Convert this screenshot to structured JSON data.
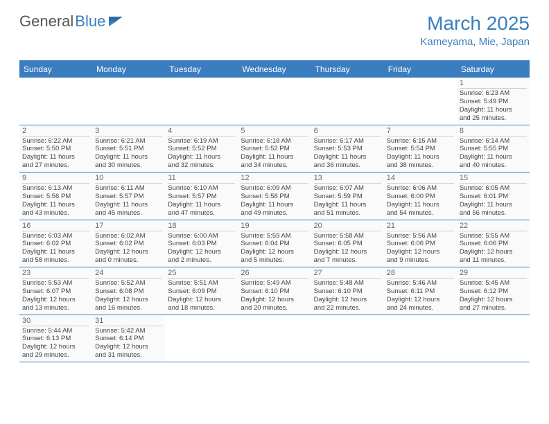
{
  "logo": {
    "general": "General",
    "blue": "Blue"
  },
  "title": "March 2025",
  "location": "Kameyama, Mie, Japan",
  "colors": {
    "accent": "#3b7ec0",
    "cell_bg": "#fafafa",
    "text": "#444444",
    "day_num": "#666666"
  },
  "day_headers": [
    "Sunday",
    "Monday",
    "Tuesday",
    "Wednesday",
    "Thursday",
    "Friday",
    "Saturday"
  ],
  "weeks": [
    [
      null,
      null,
      null,
      null,
      null,
      null,
      {
        "n": "1",
        "sr": "6:23 AM",
        "ss": "5:49 PM",
        "dh": "11",
        "dm": "25"
      }
    ],
    [
      {
        "n": "2",
        "sr": "6:22 AM",
        "ss": "5:50 PM",
        "dh": "11",
        "dm": "27"
      },
      {
        "n": "3",
        "sr": "6:21 AM",
        "ss": "5:51 PM",
        "dh": "11",
        "dm": "30"
      },
      {
        "n": "4",
        "sr": "6:19 AM",
        "ss": "5:52 PM",
        "dh": "11",
        "dm": "32"
      },
      {
        "n": "5",
        "sr": "6:18 AM",
        "ss": "5:52 PM",
        "dh": "11",
        "dm": "34"
      },
      {
        "n": "6",
        "sr": "6:17 AM",
        "ss": "5:53 PM",
        "dh": "11",
        "dm": "36"
      },
      {
        "n": "7",
        "sr": "6:15 AM",
        "ss": "5:54 PM",
        "dh": "11",
        "dm": "38"
      },
      {
        "n": "8",
        "sr": "6:14 AM",
        "ss": "5:55 PM",
        "dh": "11",
        "dm": "40"
      }
    ],
    [
      {
        "n": "9",
        "sr": "6:13 AM",
        "ss": "5:56 PM",
        "dh": "11",
        "dm": "43"
      },
      {
        "n": "10",
        "sr": "6:11 AM",
        "ss": "5:57 PM",
        "dh": "11",
        "dm": "45"
      },
      {
        "n": "11",
        "sr": "6:10 AM",
        "ss": "5:57 PM",
        "dh": "11",
        "dm": "47"
      },
      {
        "n": "12",
        "sr": "6:09 AM",
        "ss": "5:58 PM",
        "dh": "11",
        "dm": "49"
      },
      {
        "n": "13",
        "sr": "6:07 AM",
        "ss": "5:59 PM",
        "dh": "11",
        "dm": "51"
      },
      {
        "n": "14",
        "sr": "6:06 AM",
        "ss": "6:00 PM",
        "dh": "11",
        "dm": "54"
      },
      {
        "n": "15",
        "sr": "6:05 AM",
        "ss": "6:01 PM",
        "dh": "11",
        "dm": "56"
      }
    ],
    [
      {
        "n": "16",
        "sr": "6:03 AM",
        "ss": "6:02 PM",
        "dh": "11",
        "dm": "58"
      },
      {
        "n": "17",
        "sr": "6:02 AM",
        "ss": "6:02 PM",
        "dh": "12",
        "dm": "0"
      },
      {
        "n": "18",
        "sr": "6:00 AM",
        "ss": "6:03 PM",
        "dh": "12",
        "dm": "2"
      },
      {
        "n": "19",
        "sr": "5:59 AM",
        "ss": "6:04 PM",
        "dh": "12",
        "dm": "5"
      },
      {
        "n": "20",
        "sr": "5:58 AM",
        "ss": "6:05 PM",
        "dh": "12",
        "dm": "7"
      },
      {
        "n": "21",
        "sr": "5:56 AM",
        "ss": "6:06 PM",
        "dh": "12",
        "dm": "9"
      },
      {
        "n": "22",
        "sr": "5:55 AM",
        "ss": "6:06 PM",
        "dh": "12",
        "dm": "11"
      }
    ],
    [
      {
        "n": "23",
        "sr": "5:53 AM",
        "ss": "6:07 PM",
        "dh": "12",
        "dm": "13"
      },
      {
        "n": "24",
        "sr": "5:52 AM",
        "ss": "6:08 PM",
        "dh": "12",
        "dm": "16"
      },
      {
        "n": "25",
        "sr": "5:51 AM",
        "ss": "6:09 PM",
        "dh": "12",
        "dm": "18"
      },
      {
        "n": "26",
        "sr": "5:49 AM",
        "ss": "6:10 PM",
        "dh": "12",
        "dm": "20"
      },
      {
        "n": "27",
        "sr": "5:48 AM",
        "ss": "6:10 PM",
        "dh": "12",
        "dm": "22"
      },
      {
        "n": "28",
        "sr": "5:46 AM",
        "ss": "6:11 PM",
        "dh": "12",
        "dm": "24"
      },
      {
        "n": "29",
        "sr": "5:45 AM",
        "ss": "6:12 PM",
        "dh": "12",
        "dm": "27"
      }
    ],
    [
      {
        "n": "30",
        "sr": "5:44 AM",
        "ss": "6:13 PM",
        "dh": "12",
        "dm": "29"
      },
      {
        "n": "31",
        "sr": "5:42 AM",
        "ss": "6:14 PM",
        "dh": "12",
        "dm": "31"
      },
      null,
      null,
      null,
      null,
      null
    ]
  ]
}
